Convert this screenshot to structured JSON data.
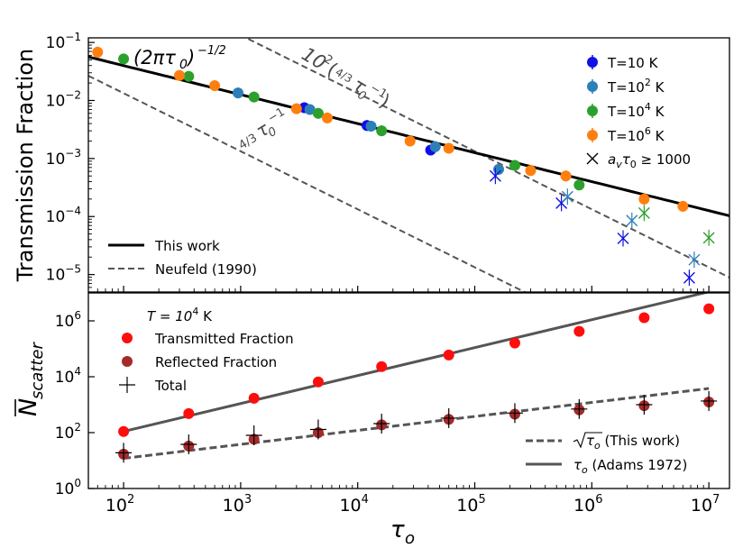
{
  "chart_data": [
    {
      "type": "scatter",
      "panel": "top",
      "ylabel": "Transmission Fraction",
      "xlabel": "",
      "x_scale": "log",
      "y_scale": "log",
      "xlim": [
        50,
        15000000
      ],
      "ylim": [
        5e-06,
        0.12
      ],
      "y_ticks": [
        {
          "v": 0.1,
          "b": "10",
          "e": "−1"
        },
        {
          "v": 0.01,
          "b": "10",
          "e": "−2"
        },
        {
          "v": 0.001,
          "b": "10",
          "e": "−3"
        },
        {
          "v": 0.0001,
          "b": "10",
          "e": "−4"
        },
        {
          "v": 1e-05,
          "b": "10",
          "e": "−5"
        }
      ],
      "series": [
        {
          "name": "T=10 K",
          "label_base": "T=10 K",
          "label_sup": "",
          "label_tail": "",
          "color": "#1010e6",
          "x": [
            3500,
            12000,
            42000
          ],
          "y": [
            0.0075,
            0.0037,
            0.0014
          ]
        },
        {
          "name": "T=10² K",
          "label_base": "T=10",
          "label_sup": "2",
          "label_tail": " K",
          "color": "#2c7fb8",
          "x": [
            950,
            3900,
            13000,
            46000,
            160000
          ],
          "y": [
            0.0135,
            0.007,
            0.0036,
            0.0016,
            0.00065
          ]
        },
        {
          "name": "T=10⁴ K",
          "label_base": "T=10",
          "label_sup": "4",
          "label_tail": " K",
          "color": "#2ca02c",
          "x": [
            100,
            360,
            1300,
            4600,
            16000,
            220000,
            780000
          ],
          "y": [
            0.052,
            0.026,
            0.0115,
            0.006,
            0.003,
            0.00076,
            0.00035
          ]
        },
        {
          "name": "T=10⁶ K",
          "label_base": "T=10",
          "label_sup": "6",
          "label_tail": " K",
          "color": "#ff7f0e",
          "x": [
            60,
            300,
            600,
            3000,
            5500,
            28000,
            60000,
            300000,
            600000,
            2800000,
            6000000
          ],
          "y": [
            0.068,
            0.027,
            0.018,
            0.0072,
            0.005,
            0.002,
            0.0015,
            0.00062,
            0.0005,
            0.0002,
            0.00015
          ]
        }
      ],
      "crosses": {
        "label": "a_v τ_0 ≥ 1000",
        "label_base": "a",
        "label_sub": "v",
        "label_mid": "τ",
        "label_sub2": "0",
        "label_tail": " ≥ 1000",
        "points": [
          {
            "x": 150000,
            "y": 0.0005,
            "color": "#1010e6"
          },
          {
            "x": 550000,
            "y": 0.00017,
            "color": "#1010e6"
          },
          {
            "x": 1850000,
            "y": 4.2e-05,
            "color": "#1010e6"
          },
          {
            "x": 6800000,
            "y": 8.8e-06,
            "color": "#1010e6"
          },
          {
            "x": 620000,
            "y": 0.00022,
            "color": "#2c7fb8"
          },
          {
            "x": 2200000,
            "y": 8.5e-05,
            "color": "#2c7fb8"
          },
          {
            "x": 7500000,
            "y": 1.8e-05,
            "color": "#2c7fb8"
          },
          {
            "x": 2800000,
            "y": 0.000115,
            "color": "#2ca02c"
          },
          {
            "x": 10000000,
            "y": 4.3e-05,
            "color": "#2ca02c"
          }
        ]
      },
      "lines": [
        {
          "name": "This work",
          "style": "solid",
          "formula": "(2πτ0)^(-1/2)"
        },
        {
          "name": "Neufeld (1990)",
          "style": "dashed",
          "formula": "(4/3) τ0^-1"
        },
        {
          "name": "Neufeld (1990) x100",
          "style": "dashed",
          "formula": "10^2 (4/3 τ0^-1)"
        }
      ],
      "legend_right": "top-right",
      "legend_left": "bottom-left",
      "annotations": {
        "this_work_base": "(2πτ",
        "this_work_sub": "0",
        "this_work_close": ")",
        "this_work_exp": "−1/2",
        "neufeld_factor": "4/3",
        "neufeld_tau": "τ",
        "neufeld_sub": "0",
        "neufeld_exp": "−1",
        "upper_base": "10",
        "upper_exp": "2",
        "upper_paren_open": "(",
        "upper_paren_close": ")"
      }
    },
    {
      "type": "scatter",
      "panel": "bottom",
      "ylabel": "N̄ scatter",
      "ylabel_main": "N",
      "ylabel_sub": "scatter",
      "xlabel": "τ_o",
      "xlabel_main": "τ",
      "xlabel_sub": "o",
      "x_scale": "log",
      "y_scale": "log",
      "xlim": [
        50,
        15000000
      ],
      "ylim": [
        1,
        10000000
      ],
      "y_ticks": [
        {
          "v": 1,
          "b": "10",
          "e": "0"
        },
        {
          "v": 100,
          "b": "10",
          "e": "2"
        },
        {
          "v": 10000,
          "b": "10",
          "e": "4"
        },
        {
          "v": 1000000,
          "b": "10",
          "e": "6"
        }
      ],
      "x_ticks": [
        {
          "v": 100,
          "b": "10",
          "e": "2"
        },
        {
          "v": 1000,
          "b": "10",
          "e": "3"
        },
        {
          "v": 10000,
          "b": "10",
          "e": "4"
        },
        {
          "v": 100000,
          "b": "10",
          "e": "5"
        },
        {
          "v": 1000000,
          "b": "10",
          "e": "6"
        },
        {
          "v": 10000000,
          "b": "10",
          "e": "7"
        }
      ],
      "x": [
        100,
        360,
        1300,
        4600,
        16000,
        60000,
        220000,
        780000,
        2800000,
        10000000
      ],
      "series": [
        {
          "name": "Transmitted Fraction",
          "color": "#ff0d0d",
          "values": [
            110,
            480,
            1700,
            6500,
            23000,
            60000,
            160000,
            420000,
            1300000,
            2700000
          ]
        },
        {
          "name": "Reflected Fraction",
          "color": "#a52a2a",
          "values": [
            17,
            33,
            58,
            100,
            190,
            300,
            460,
            650,
            920,
            1250
          ]
        },
        {
          "name": "Total",
          "color": "#000000",
          "values": [
            19,
            38,
            80,
            130,
            210,
            330,
            500,
            700,
            1000,
            1350
          ]
        }
      ],
      "lines": [
        {
          "name": "√τo (This work)",
          "style": "dashed",
          "formula": "sqrt(τo)",
          "label_tau": "τ",
          "label_sub": "o",
          "label_tail": "  (This work)"
        },
        {
          "name": "τo (Adams 1972)",
          "style": "solid",
          "formula": "τo",
          "label_tau": "τ",
          "label_sub": "o",
          "label_tail": "  (Adams 1972)"
        }
      ],
      "temperature_label": {
        "base": "T = 10",
        "exp": "4",
        "tail": " K"
      },
      "legend_main": "top-left",
      "legend_lines": "bottom-right"
    }
  ]
}
